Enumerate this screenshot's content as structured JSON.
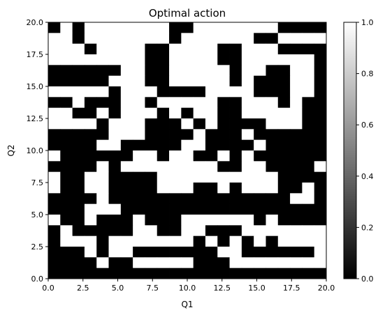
{
  "chart_data": {
    "type": "heatmap",
    "title": "Optimal action",
    "xlabel": "Q1",
    "ylabel": "Q2",
    "xlim": [
      0,
      20
    ],
    "ylim": [
      0,
      20
    ],
    "grid": false,
    "xticks": [
      "0.0",
      "2.5",
      "5.0",
      "7.5",
      "10.0",
      "12.5",
      "15.0",
      "17.5",
      "20.0"
    ],
    "yticks": [
      "0.0",
      "2.5",
      "5.0",
      "7.5",
      "10.0",
      "12.5",
      "15.0",
      "17.5",
      "20.0"
    ],
    "colorbar": {
      "range": [
        0,
        1
      ],
      "ticks": [
        "0.0",
        "0.2",
        "0.4",
        "0.6",
        "0.8",
        "1.0"
      ],
      "colormap": "gray"
    },
    "rows_top_to_bottom": [
      "01011111110011111110000",
      "11011111110111111001111",
      "11101111001111001110000",
      "11111111001111001111110",
      "00000011001111101100110",
      "00000111001111101000110",
      "11111011100001111000110",
      "00100011011111001110100",
      "11001011101011001111100",
      "11110111000101000011100",
      "00000111000010001000000",
      "00001100000110000100000",
      "10000001101100101000000",
      "00001011111111001100001",
      "10011000011111111110000",
      "10011000011100101110010",
      "00001000000000000000110",
      "00011100000000000000000",
      "10010001000111111010000",
      "01000001100110001111111",
      "01110111111101010101111",
      "00010110000000110000001",
      "00001001111100011111111",
      "00000000000000000000000"
    ]
  }
}
